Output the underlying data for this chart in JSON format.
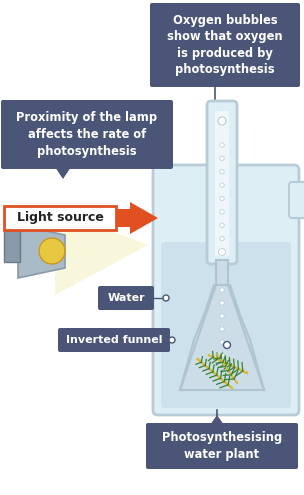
{
  "bg_color": "#ffffff",
  "label_bg_color": "#4a5578",
  "label_text_color": "#ffffff",
  "arrow_color": "#e05020",
  "light_source_box_color": "#ffffff",
  "light_source_text_color": "#333333",
  "light_source_border_color": "#e05020",
  "beaker_fill": "#ddeef5",
  "beaker_stroke": "#b8ccd8",
  "water_fill": "#c5dce8",
  "tube_fill": "#ddeef5",
  "tube_stroke": "#b8ccd8",
  "funnel_fill": "#ccdde8",
  "funnel_stroke": "#b0c4d0",
  "lamp_body_color": "#c0ccd8",
  "lamp_base_color": "#a0b0be",
  "lamp_light_color": "#f8f5d8",
  "bulb_color": "#e8c840",
  "plant_color": "#3a8030",
  "plant_stem_color": "#d4b840",
  "bubble_color": "#ffffff",
  "line_color": "#4a5578",
  "label1_text": "Oxygen bubbles\nshow that oxygen\nis produced by\nphotosynthesis",
  "label2_text": "Proximity of the lamp\naffects the rate of\nphotosynthesis",
  "label3_text": "Light source",
  "label4_text": "Water",
  "label5_text": "Inverted funnel",
  "label6_text": "Photosynthesising\nwater plant"
}
